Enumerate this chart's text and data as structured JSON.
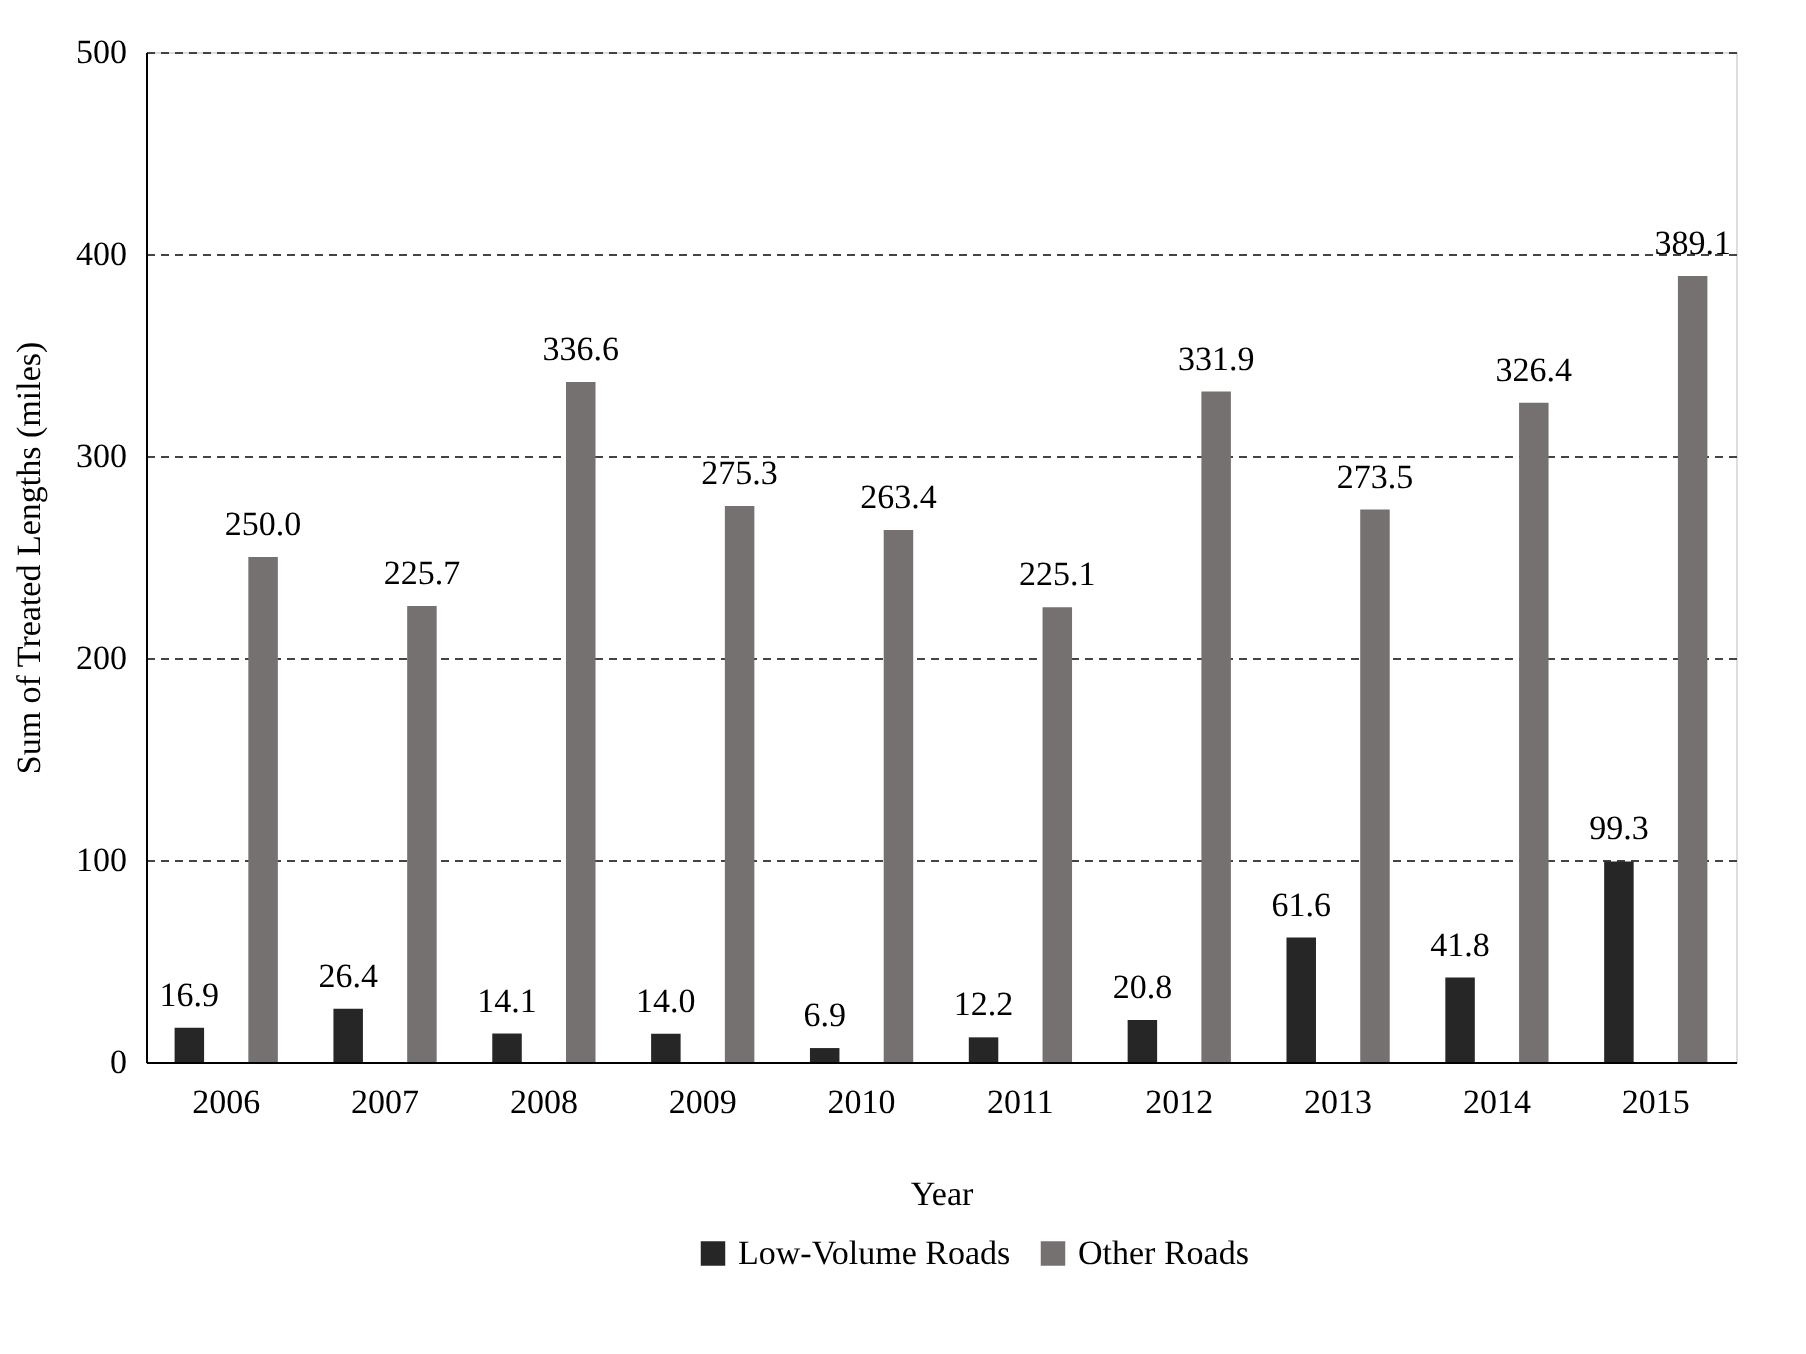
{
  "chart_data": {
    "type": "bar",
    "xlabel": "Year",
    "ylabel": "Sum of Treated Lengths (miles)",
    "categories": [
      "2006",
      "2007",
      "2008",
      "2009",
      "2010",
      "2011",
      "2012",
      "2013",
      "2014",
      "2015"
    ],
    "series": [
      {
        "name": "Low-Volume Roads",
        "color": "#262626",
        "values": [
          16.9,
          26.4,
          14.1,
          14.0,
          6.9,
          12.2,
          20.8,
          61.6,
          41.8,
          99.3
        ],
        "value_labels": [
          "16.9",
          "26.4",
          "14.1",
          "14.0",
          "6.9",
          "12.2",
          "20.8",
          "61.6",
          "41.8",
          "99.3"
        ]
      },
      {
        "name": "Other Roads",
        "color": "#767171",
        "values": [
          250.0,
          225.7,
          336.6,
          275.3,
          263.4,
          225.1,
          331.9,
          273.5,
          326.4,
          389.1
        ],
        "value_labels": [
          "250.0",
          "225.7",
          "336.6",
          "275.3",
          "263.4",
          "225.1",
          "331.9",
          "273.5",
          "326.4",
          "389.1"
        ]
      }
    ],
    "ylim": [
      0,
      500
    ],
    "yticks": [
      0,
      100,
      200,
      300,
      400,
      500
    ],
    "grid": "y",
    "legend": "bottom"
  }
}
